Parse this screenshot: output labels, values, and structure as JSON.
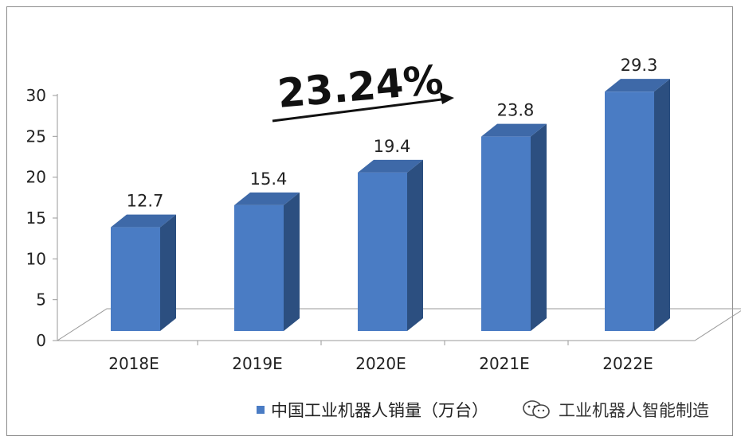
{
  "chart_data": {
    "type": "bar",
    "categories": [
      "2018E",
      "2019E",
      "2020E",
      "2021E",
      "2022E"
    ],
    "series": [
      {
        "name": "中国工业机器人销量（万台）",
        "values": [
          12.7,
          15.4,
          19.4,
          23.8,
          29.3
        ]
      }
    ],
    "data_labels": [
      "12.7",
      "15.4",
      "19.4",
      "23.8",
      "29.3"
    ],
    "y_ticks": [
      "0",
      "5",
      "10",
      "15",
      "20",
      "25",
      "30"
    ],
    "ylim": [
      0,
      30
    ],
    "grid": false,
    "legend_position": "bottom",
    "annotation": "23.24%",
    "bar_color": "#4a7cc4",
    "bar_side_color": "#2c4f80",
    "bar_top_color": "#3e69a8"
  },
  "watermark": {
    "text": "工业机器人智能制造",
    "icon": "wechat-icon"
  }
}
